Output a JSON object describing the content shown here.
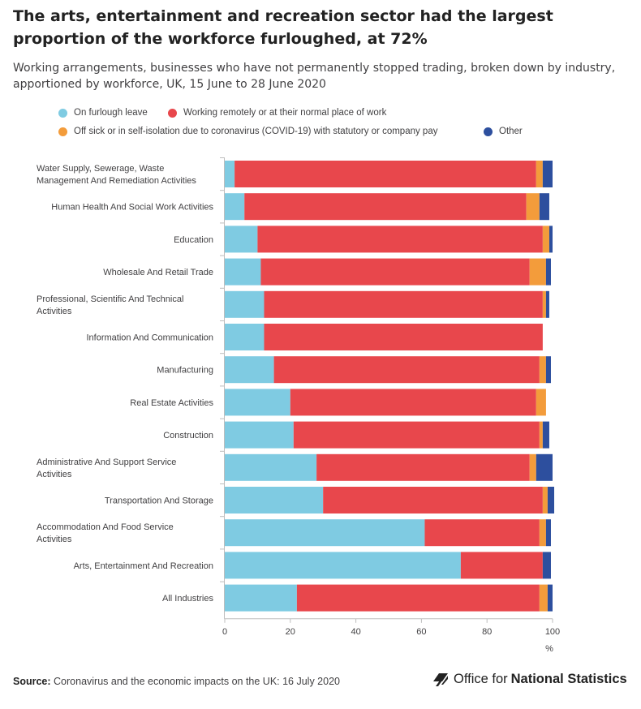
{
  "title": "The arts, entertainment and recreation sector had the largest proportion of the workforce furloughed, at 72%",
  "subtitle": "Working arrangements, businesses who have not permanently stopped trading, broken down by industry, apportioned by workforce, UK, 15 June to 28 June 2020",
  "legend": [
    {
      "label": "On furlough leave",
      "color": "#7fcbe2"
    },
    {
      "label": "Working remotely or at their normal place of work",
      "color": "#e8474c"
    },
    {
      "label": "Off sick or in self-isolation due to coronavirus (COVID-19) with statutory or company pay",
      "color": "#f39c3b"
    },
    {
      "label": "Other",
      "color": "#2d4f9e"
    }
  ],
  "footer": {
    "source_label": "Source:",
    "source_text": " Coronavirus and the economic impacts on the UK: 16 July 2020",
    "logo_text_plain": "Office for",
    "logo_text_bold": "National Statistics"
  },
  "chart_data": {
    "type": "bar",
    "orientation": "horizontal",
    "stacked": true,
    "categories": [
      "Water Supply, Sewerage, Waste Management And Remediation Activities",
      "Human Health And Social Work Activities",
      "Education",
      "Wholesale And Retail Trade",
      "Professional, Scientific And Technical Activities",
      "Information And Communication",
      "Manufacturing",
      "Real Estate Activities",
      "Construction",
      "Administrative And Support Service Activities",
      "Transportation And Storage",
      "Accommodation And Food Service Activities",
      "Arts, Entertainment And Recreation",
      "All Industries"
    ],
    "category_lines": [
      [
        "Water Supply, Sewerage, Waste",
        "Management And Remediation Activities"
      ],
      [
        "Human Health And Social Work Activities"
      ],
      [
        "Education"
      ],
      [
        "Wholesale And Retail Trade"
      ],
      [
        "Professional, Scientific And Technical",
        "Activities"
      ],
      [
        "Information And Communication"
      ],
      [
        "Manufacturing"
      ],
      [
        "Real Estate Activities"
      ],
      [
        "Construction"
      ],
      [
        "Administrative And Support Service",
        "Activities"
      ],
      [
        "Transportation And Storage"
      ],
      [
        "Accommodation And Food Service",
        "Activities"
      ],
      [
        "Arts, Entertainment And Recreation"
      ],
      [
        "All Industries"
      ]
    ],
    "series": [
      {
        "name": "On furlough leave",
        "color": "#7fcbe2",
        "values": [
          3,
          6,
          10,
          11,
          12,
          12,
          15,
          20,
          21,
          28,
          30,
          61,
          72,
          22
        ]
      },
      {
        "name": "Working remotely or at their normal place of work",
        "color": "#e8474c",
        "values": [
          92,
          86,
          87,
          82,
          85,
          85,
          81,
          75,
          75,
          65,
          67,
          35,
          25,
          74
        ]
      },
      {
        "name": "Off sick or in self-isolation due to coronavirus (COVID-19) with statutory or company pay",
        "color": "#f39c3b",
        "values": [
          2,
          4,
          2,
          5,
          1,
          0,
          2,
          3,
          1,
          2,
          1.5,
          2,
          0,
          2.5
        ]
      },
      {
        "name": "Other",
        "color": "#2d4f9e",
        "values": [
          3,
          3,
          1,
          1.5,
          1,
          0,
          1.5,
          0,
          2,
          5,
          2,
          1.5,
          2.5,
          1.5
        ]
      }
    ],
    "xlim": [
      0,
      100
    ],
    "xticks": [
      0,
      20,
      40,
      60,
      80,
      100
    ],
    "xunit": "%",
    "grid": false,
    "legend_position": "top"
  }
}
